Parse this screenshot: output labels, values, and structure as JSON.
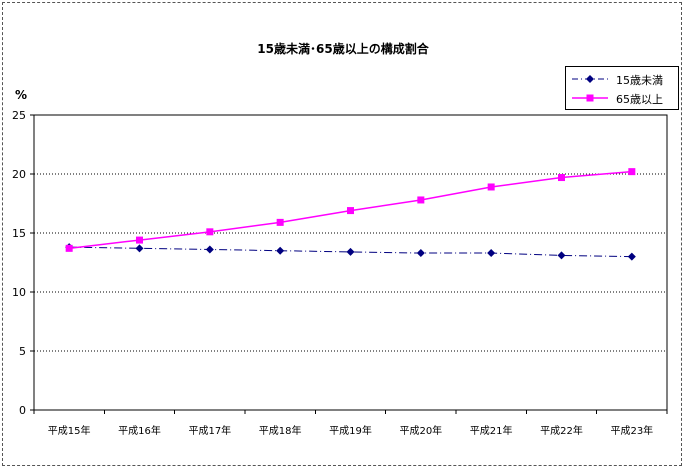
{
  "chart_data": {
    "type": "line",
    "title": "15歳未満･65歳以上の構成割合",
    "ylabel": "%",
    "xlabel": "",
    "categories": [
      "平成15年",
      "平成16年",
      "平成17年",
      "平成18年",
      "平成19年",
      "平成20年",
      "平成21年",
      "平成22年",
      "平成23年"
    ],
    "ylim": [
      0,
      25
    ],
    "yticks": [
      0,
      5,
      10,
      15,
      20,
      25
    ],
    "grid": true,
    "legend_position": "top-right",
    "series": [
      {
        "name": "15歳未満",
        "values": [
          13.8,
          13.7,
          13.6,
          13.5,
          13.4,
          13.3,
          13.3,
          13.1,
          13.0
        ],
        "color": "#000080",
        "marker": "diamond",
        "line_style": "dash-dot"
      },
      {
        "name": "65歳以上",
        "values": [
          13.7,
          14.4,
          15.1,
          15.9,
          16.9,
          17.8,
          18.9,
          19.7,
          20.2
        ],
        "color": "#ff00ff",
        "marker": "square",
        "line_style": "solid"
      }
    ]
  }
}
